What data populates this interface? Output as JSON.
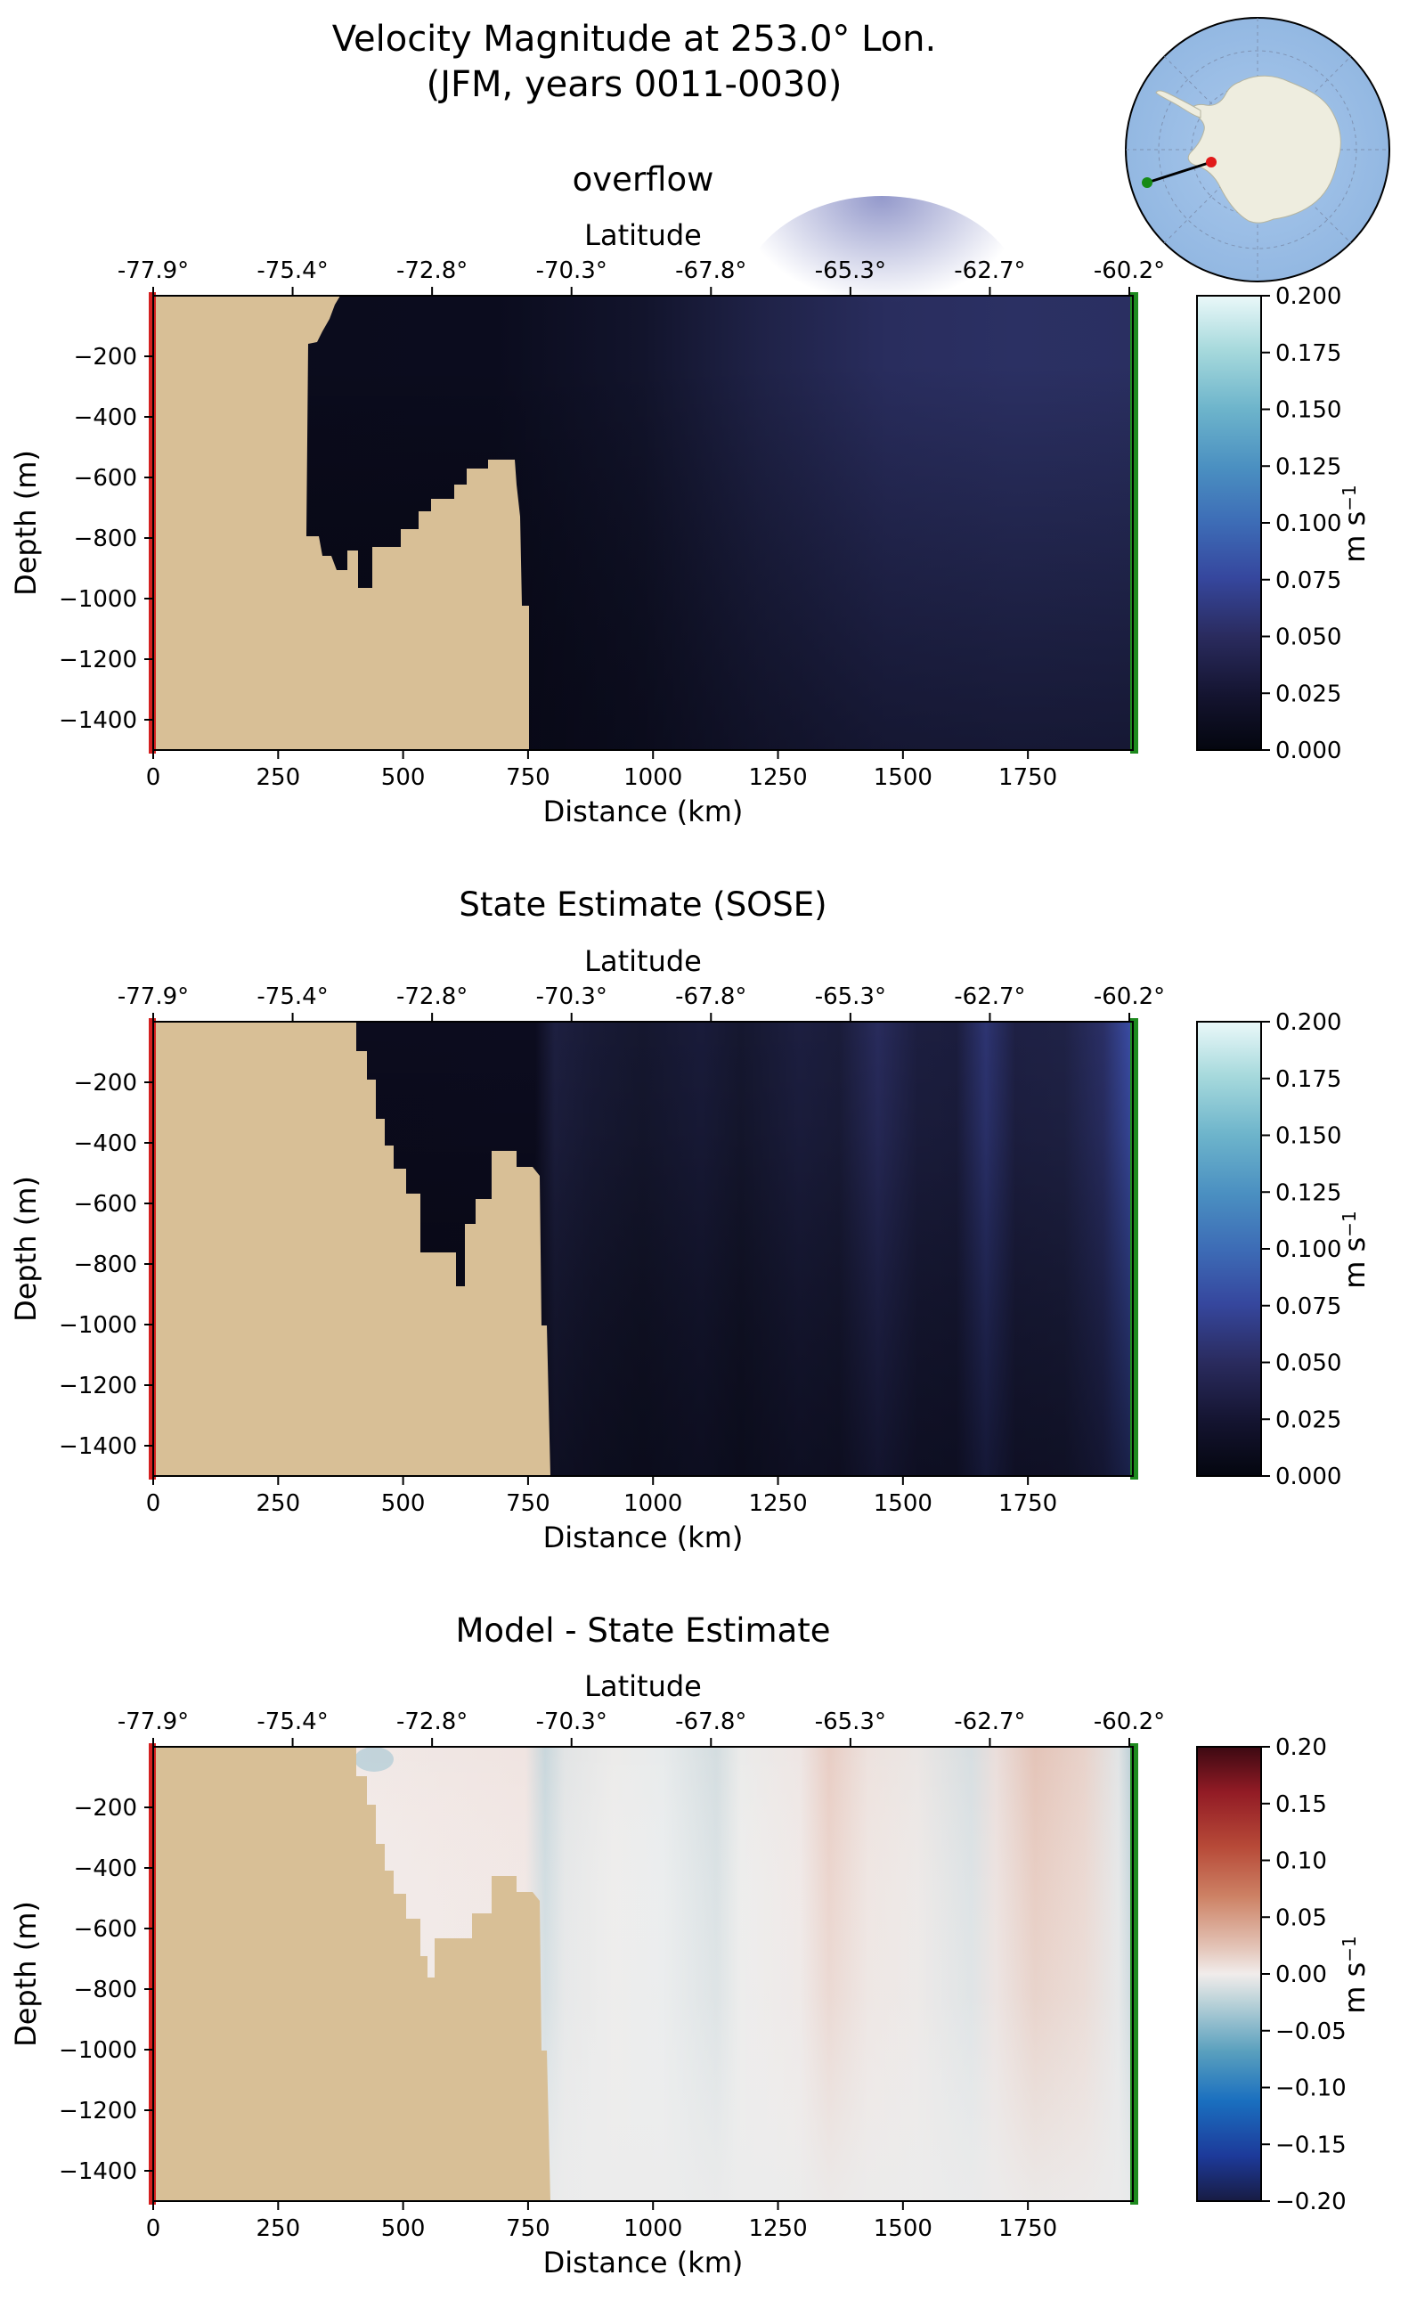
{
  "figure": {
    "title_line1": "Velocity Magnitude at 253.0° Lon.",
    "title_line2": "(JFM, years 0011-0030)"
  },
  "inset_map": {
    "description": "polar stereographic map of Antarctica with section line",
    "colors": {
      "ocean": "#9dbfe6",
      "land": "#efefe0",
      "line": "#000000",
      "start_marker": "#e11a1a",
      "end_marker": "#168a16"
    }
  },
  "colors": {
    "land": "#d8bf96",
    "section_start_line": "#d42020",
    "section_end_line": "#1e8a1e"
  },
  "chart_data": [
    {
      "type": "heatmap",
      "title": "overflow",
      "xlabel": "Distance (km)",
      "ylabel": "Depth (m)",
      "top_axis_label": "Latitude",
      "top_ticks": [
        "-77.9°",
        "-75.4°",
        "-72.8°",
        "-70.3°",
        "-67.8°",
        "-65.3°",
        "-62.7°",
        "-60.2°"
      ],
      "x_ticks": [
        "0",
        "250",
        "500",
        "750",
        "1000",
        "1250",
        "1500",
        "1750"
      ],
      "y_ticks": [
        "−200",
        "−400",
        "−600",
        "−800",
        "−1000",
        "−1200",
        "−1400"
      ],
      "xlim": [
        0,
        1960
      ],
      "ylim": [
        -1500,
        0
      ],
      "colorbar": {
        "label": "m s",
        "label_sup": "−1",
        "colormap": "ice",
        "range": [
          0,
          0.2
        ],
        "ticks": [
          "0.200",
          "0.175",
          "0.150",
          "0.125",
          "0.100",
          "0.075",
          "0.050",
          "0.025",
          "0.000"
        ]
      },
      "bathymetry_bottom_depth": [
        [
          0,
          0
        ],
        [
          300,
          0
        ],
        [
          300,
          -120
        ],
        [
          320,
          -80
        ],
        [
          340,
          -40
        ],
        [
          360,
          0
        ],
        [
          300,
          -800
        ],
        [
          330,
          -860
        ],
        [
          340,
          -910
        ],
        [
          370,
          -820
        ],
        [
          400,
          -780
        ],
        [
          410,
          -960
        ],
        [
          440,
          -960
        ],
        [
          440,
          -800
        ],
        [
          500,
          -800
        ],
        [
          510,
          -720
        ],
        [
          560,
          -620
        ],
        [
          650,
          -600
        ],
        [
          680,
          -550
        ],
        [
          700,
          -500
        ],
        [
          730,
          -500
        ],
        [
          740,
          -1000
        ],
        [
          750,
          -1500
        ]
      ],
      "field_notes": "weak flow 0.00-0.02 m/s near shelf, 0.03-0.05 m/s offshore above 1000 km, max ~0.055 m/s at surface near 1350-1500 km"
    },
    {
      "type": "heatmap",
      "title": "State Estimate (SOSE)",
      "xlabel": "Distance (km)",
      "ylabel": "Depth (m)",
      "top_axis_label": "Latitude",
      "top_ticks": [
        "-77.9°",
        "-75.4°",
        "-72.8°",
        "-70.3°",
        "-67.8°",
        "-65.3°",
        "-62.7°",
        "-60.2°"
      ],
      "x_ticks": [
        "0",
        "250",
        "500",
        "750",
        "1000",
        "1250",
        "1500",
        "1750"
      ],
      "y_ticks": [
        "−200",
        "−400",
        "−600",
        "−800",
        "−1000",
        "−1200",
        "−1400"
      ],
      "xlim": [
        0,
        1960
      ],
      "ylim": [
        -1500,
        0
      ],
      "colorbar": {
        "label": "m s",
        "label_sup": "−1",
        "colormap": "ice",
        "range": [
          0,
          0.2
        ],
        "ticks": [
          "0.200",
          "0.175",
          "0.150",
          "0.125",
          "0.100",
          "0.075",
          "0.050",
          "0.025",
          "0.000"
        ]
      },
      "field_notes": "banded structure; velocity maxima ~0.05-0.07 m/s near 1450 km and 1660 km, ~0.08 m/s near 1950 km"
    },
    {
      "type": "heatmap",
      "title": "Model - State Estimate",
      "xlabel": "Distance (km)",
      "ylabel": "Depth (m)",
      "top_axis_label": "Latitude",
      "top_ticks": [
        "-77.9°",
        "-75.4°",
        "-72.8°",
        "-70.3°",
        "-67.8°",
        "-65.3°",
        "-62.7°",
        "-60.2°"
      ],
      "x_ticks": [
        "0",
        "250",
        "500",
        "750",
        "1000",
        "1250",
        "1500",
        "1750"
      ],
      "y_ticks": [
        "−200",
        "−400",
        "−600",
        "−800",
        "−1000",
        "−1200",
        "−1400"
      ],
      "xlim": [
        0,
        1960
      ],
      "ylim": [
        -1500,
        0
      ],
      "colorbar": {
        "label": "m s",
        "label_sup": "−1",
        "colormap": "balance",
        "range": [
          -0.2,
          0.2
        ],
        "ticks": [
          "0.20",
          "0.15",
          "0.10",
          "0.05",
          "0.00",
          "−0.05",
          "−0.10",
          "−0.15",
          "−0.20"
        ]
      },
      "field_notes": "differences mostly within ±0.03 m/s; positive near 1300-1400 km and 1700-1850 km, negative near 790, 1130, 1660, 1950 km"
    }
  ]
}
